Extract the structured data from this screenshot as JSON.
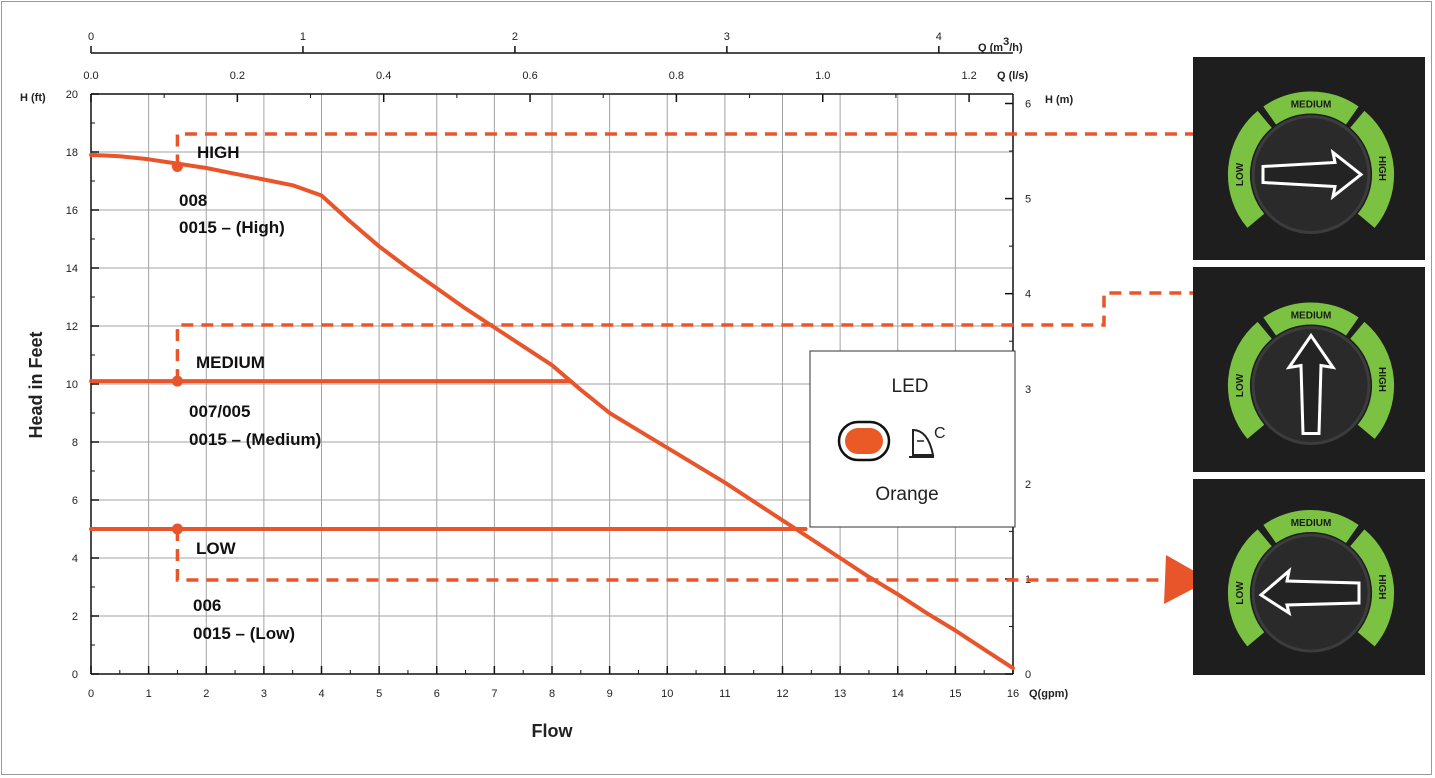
{
  "chart_data": {
    "type": "line",
    "xlabel": "Flow",
    "ylabel": "Head in Feet",
    "xlim": [
      0,
      16
    ],
    "ylim": [
      0,
      20
    ],
    "x_unit": "Q(gpm)",
    "y_unit": "H (ft)",
    "x_ticks": [
      "0",
      "1",
      "2",
      "3",
      "4",
      "5",
      "6",
      "7",
      "8",
      "9",
      "10",
      "11",
      "12",
      "13",
      "14",
      "15",
      "16"
    ],
    "y_ticks": [
      "0",
      "2",
      "4",
      "6",
      "8",
      "10",
      "12",
      "14",
      "16",
      "18",
      "20"
    ],
    "secondary_axes": {
      "top_m3h": {
        "unit": "Q (m3/h)",
        "range": [
          0,
          4.35
        ],
        "ticks": [
          "0",
          "1",
          "2",
          "3",
          "4"
        ]
      },
      "top_ls": {
        "unit": "Q (l/s)",
        "range": [
          0,
          1.26
        ],
        "ticks": [
          "0.0",
          "0.2",
          "0.4",
          "0.6",
          "0.8",
          "1.0",
          "1.2"
        ]
      },
      "right_m": {
        "unit": "H (m)",
        "range": [
          0,
          6.1
        ],
        "ticks": [
          "0",
          "1",
          "2",
          "3",
          "4",
          "5",
          "6"
        ]
      }
    },
    "series": [
      {
        "x": [
          0,
          0.5,
          1,
          1.5,
          2,
          2.5,
          3,
          3.5,
          4,
          4.5,
          5,
          5.5,
          6,
          6.5,
          7,
          7.5,
          8,
          8.5,
          9,
          9.5,
          10,
          10.5,
          11,
          11.5,
          12,
          12.5,
          13,
          13.5,
          14,
          14.5,
          15,
          15.5,
          16
        ],
        "values": [
          17.9,
          17.85,
          17.75,
          17.6,
          17.45,
          17.25,
          17.05,
          16.85,
          16.5,
          15.6,
          14.75,
          14.0,
          13.3,
          12.6,
          11.95,
          11.3,
          10.65,
          9.8,
          9.0,
          8.4,
          7.8,
          7.2,
          6.6,
          5.95,
          5.3,
          4.65,
          4.0,
          3.35,
          2.75,
          2.1,
          1.5,
          0.85,
          0.2
        ]
      },
      {
        "x": [
          0,
          8.3
        ],
        "values": [
          10.1,
          10.1
        ]
      },
      {
        "x": [
          0,
          12.4
        ],
        "values": [
          5.0,
          5.0
        ]
      }
    ],
    "speed_labels": [
      {
        "name": "HIGH",
        "models": [
          "008",
          "0015 – (High)"
        ]
      },
      {
        "name": "MEDIUM",
        "models": [
          "007/005",
          "0015 – (Medium)"
        ]
      },
      {
        "name": "LOW",
        "models": [
          "006",
          "0015 – (Low)"
        ]
      }
    ],
    "legend": {
      "title": "LED",
      "color_name": "Orange",
      "led_color": "#e95a27",
      "symbol": "C"
    },
    "colors": {
      "curve": "#e8552a",
      "grid": "#a3a3a3",
      "dial_bg": "#1e1e1e",
      "dial_arc": "#7cc242"
    }
  },
  "dials": [
    {
      "arc_top": "MEDIUM",
      "arc_left": "LOW",
      "arc_right": "HIGH",
      "selected": "HIGH",
      "pointer": "arrow-right-icon"
    },
    {
      "arc_top": "MEDIUM",
      "arc_left": "LOW",
      "arc_right": "HIGH",
      "selected": "MEDIUM",
      "pointer": "arrow-up-icon"
    },
    {
      "arc_top": "MEDIUM",
      "arc_left": "LOW",
      "arc_right": "HIGH",
      "selected": "LOW",
      "pointer": "arrow-left-icon"
    }
  ]
}
